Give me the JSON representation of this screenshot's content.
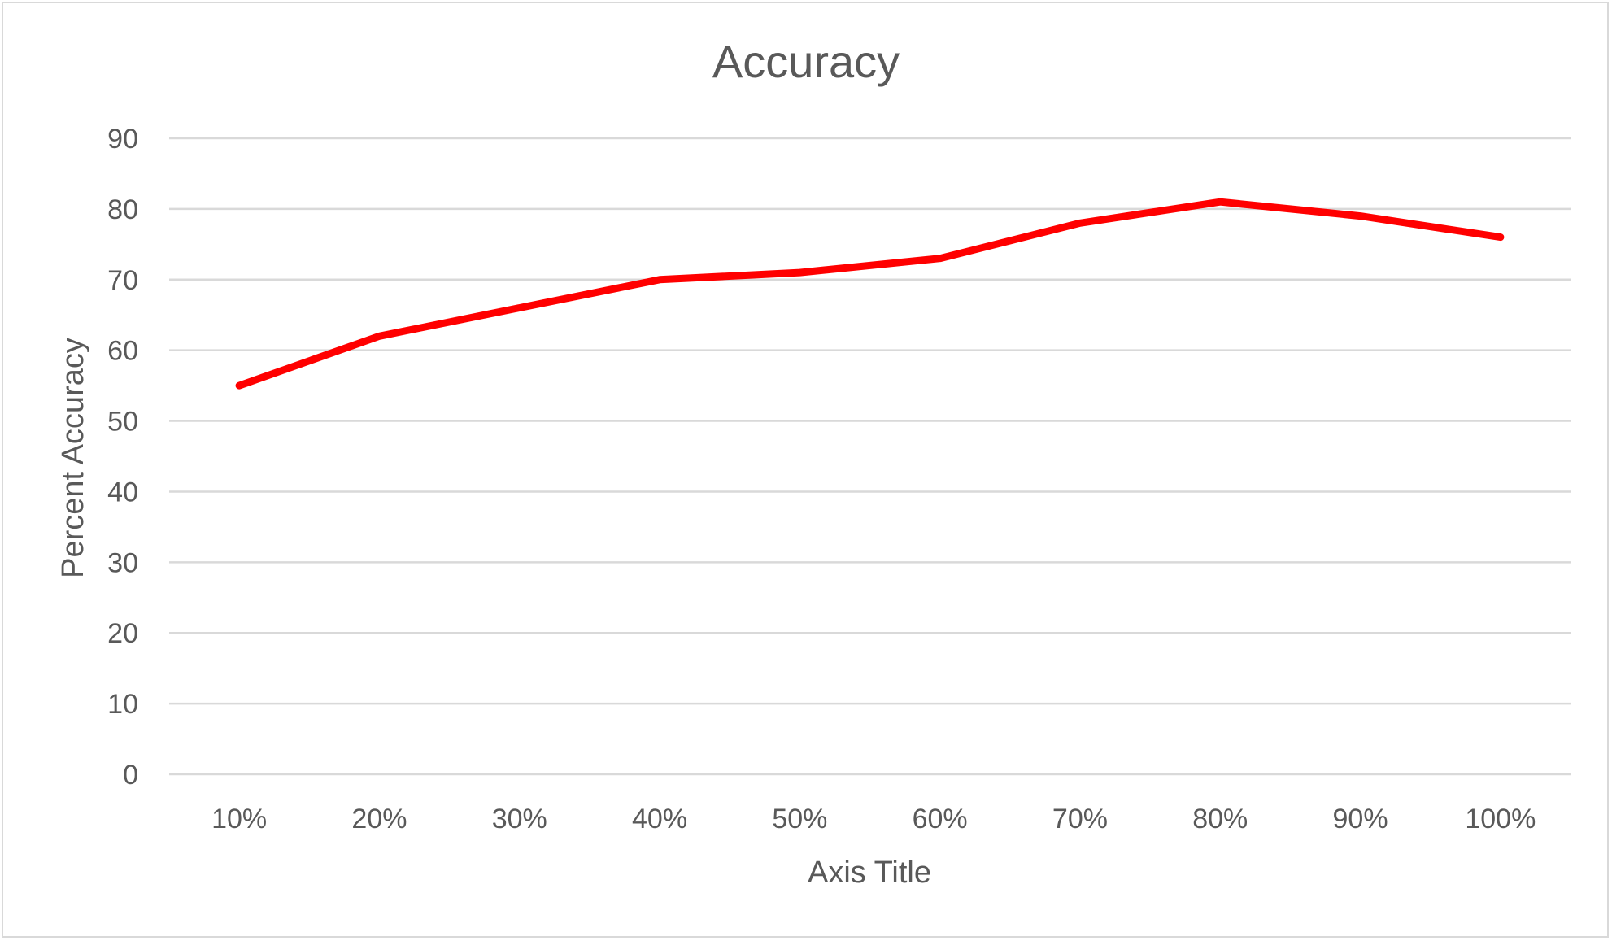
{
  "chart_data": {
    "type": "line",
    "title": "Accuracy",
    "xlabel": "Axis Title",
    "ylabel": "Percent Accuracy",
    "categories": [
      "10%",
      "20%",
      "30%",
      "40%",
      "50%",
      "60%",
      "70%",
      "80%",
      "90%",
      "100%"
    ],
    "series": [
      {
        "values": [
          55,
          62,
          66,
          70,
          71,
          73,
          78,
          81,
          79,
          76
        ],
        "color": "#ff0000"
      }
    ],
    "ylim": [
      0,
      90
    ],
    "yticks": [
      "0",
      "10",
      "20",
      "30",
      "40",
      "50",
      "60",
      "70",
      "80",
      "90"
    ],
    "grid": true,
    "legend": "none"
  }
}
